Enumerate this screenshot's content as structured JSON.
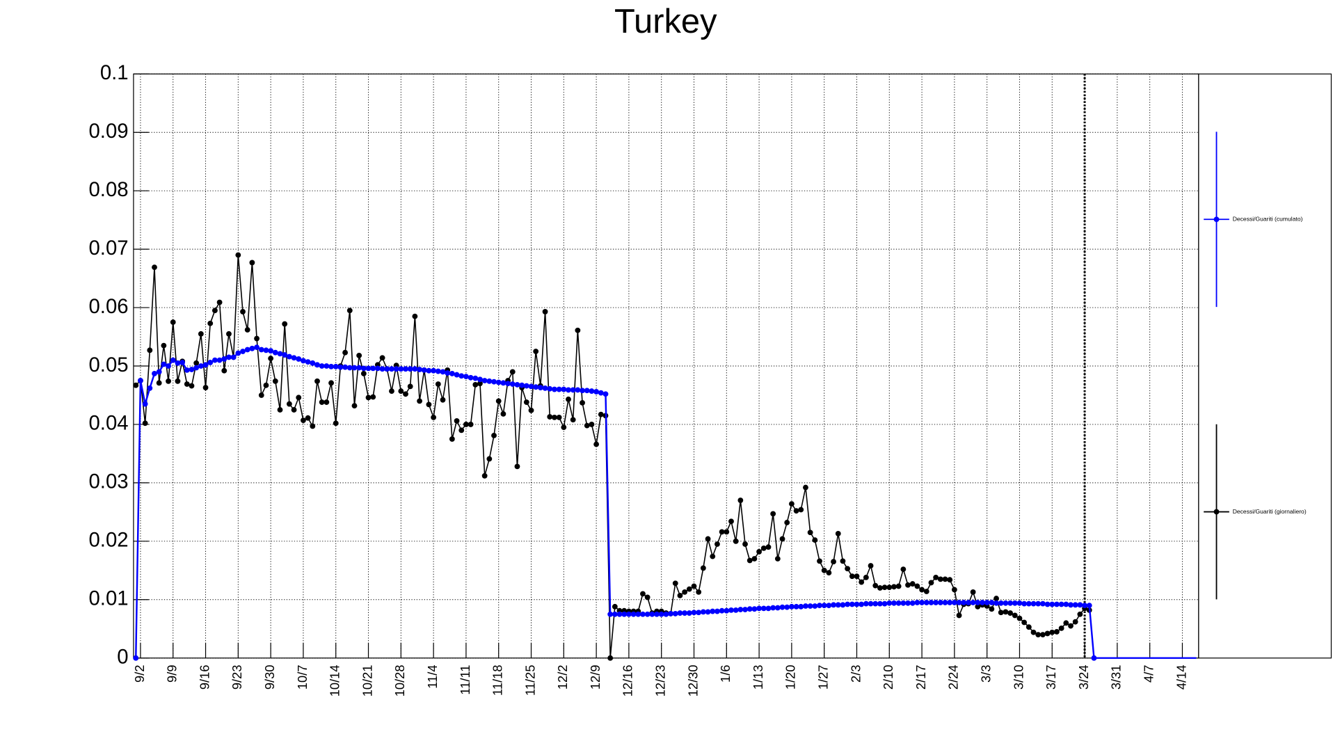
{
  "chart_data": {
    "type": "line",
    "title": "Turkey",
    "categories": [
      null,
      "9/2",
      null,
      null,
      null,
      null,
      null,
      null,
      "9/9",
      null,
      null,
      null,
      null,
      null,
      null,
      "9/16",
      null,
      null,
      null,
      null,
      null,
      null,
      "9/23",
      null,
      null,
      null,
      null,
      null,
      null,
      "9/30",
      null,
      null,
      null,
      null,
      null,
      null,
      "10/7",
      null,
      null,
      null,
      null,
      null,
      null,
      "10/14",
      null,
      null,
      null,
      null,
      null,
      null,
      "10/21",
      null,
      null,
      null,
      null,
      null,
      null,
      "10/28",
      null,
      null,
      null,
      null,
      null,
      null,
      "11/4",
      null,
      null,
      null,
      null,
      null,
      null,
      "11/11",
      null,
      null,
      null,
      null,
      null,
      null,
      "11/18",
      null,
      null,
      null,
      null,
      null,
      null,
      "11/25",
      null,
      null,
      null,
      null,
      null,
      null,
      "12/2",
      null,
      null,
      null,
      null,
      null,
      null,
      "12/9",
      null,
      null,
      null,
      null,
      null,
      null,
      "12/16",
      null,
      null,
      null,
      null,
      null,
      null,
      "12/23",
      null,
      null,
      null,
      null,
      null,
      null,
      "12/30",
      null,
      null,
      null,
      null,
      null,
      null,
      "1/6",
      null,
      null,
      null,
      null,
      null,
      null,
      "1/13",
      null,
      null,
      null,
      null,
      null,
      null,
      "1/20",
      null,
      null,
      null,
      null,
      null,
      null,
      "1/27",
      null,
      null,
      null,
      null,
      null,
      null,
      "2/3",
      null,
      null,
      null,
      null,
      null,
      null,
      "2/10",
      null,
      null,
      null,
      null,
      null,
      null,
      "2/17",
      null,
      null,
      null,
      null,
      null,
      null,
      "2/24",
      null,
      null,
      null,
      null,
      null,
      null,
      "3/3",
      null,
      null,
      null,
      null,
      null,
      null,
      "3/10",
      null,
      null,
      null,
      null,
      null,
      null,
      "3/17",
      null,
      null,
      null,
      null,
      null,
      null,
      "3/24",
      null,
      null,
      null,
      null,
      null,
      null,
      "3/31",
      null,
      null,
      null,
      null,
      null,
      null,
      "4/7",
      null,
      null,
      null,
      null,
      null,
      null,
      "4/14",
      null,
      null,
      null
    ],
    "series": [
      {
        "name": "Decessi/Guariti (cumulato)",
        "color": "#0000ff",
        "values": [
          0,
          0.0475,
          0.0435,
          0.0462,
          0.0487,
          0.049,
          0.0503,
          0.05,
          0.051,
          0.0505,
          0.0506,
          0.0493,
          0.0494,
          0.0497,
          0.05,
          0.0502,
          0.0506,
          0.051,
          0.051,
          0.0512,
          0.0515,
          0.0515,
          0.0522,
          0.0525,
          0.0528,
          0.053,
          0.0532,
          0.0528,
          0.0527,
          0.0526,
          0.0523,
          0.0521,
          0.0519,
          0.0516,
          0.0514,
          0.0512,
          0.0509,
          0.0507,
          0.0505,
          0.0502,
          0.05,
          0.05,
          0.0499,
          0.0499,
          0.0498,
          0.0498,
          0.0497,
          0.0497,
          0.0497,
          0.0496,
          0.0496,
          0.0496,
          0.0496,
          0.0495,
          0.0495,
          0.0495,
          0.0495,
          0.0495,
          0.0495,
          0.0495,
          0.0495,
          0.0494,
          0.0493,
          0.0492,
          0.0492,
          0.0491,
          0.049,
          0.0488,
          0.0487,
          0.0485,
          0.0483,
          0.0482,
          0.048,
          0.0479,
          0.0477,
          0.0475,
          0.0474,
          0.0473,
          0.0472,
          0.0471,
          0.047,
          0.0469,
          0.0468,
          0.0467,
          0.0466,
          0.0465,
          0.0464,
          0.0463,
          0.0462,
          0.0461,
          0.046,
          0.046,
          0.046,
          0.0459,
          0.0459,
          0.0459,
          0.0458,
          0.0458,
          0.0457,
          0.0456,
          0.0454,
          0.0452,
          0.0075,
          0.0075,
          0.0075,
          0.0075,
          0.0075,
          0.0075,
          0.0075,
          0.0075,
          0.0075,
          0.0075,
          0.0075,
          0.0075,
          0.0075,
          0.0076,
          0.0076,
          0.0077,
          0.0077,
          0.0077,
          0.0078,
          0.0078,
          0.0079,
          0.0079,
          0.008,
          0.008,
          0.0081,
          0.0081,
          0.0082,
          0.0082,
          0.0083,
          0.0083,
          0.0084,
          0.0084,
          0.0085,
          0.0085,
          0.0085,
          0.0086,
          0.0086,
          0.0087,
          0.0087,
          0.0088,
          0.0088,
          0.0088,
          0.0089,
          0.0089,
          0.0089,
          0.009,
          0.009,
          0.009,
          0.0091,
          0.0091,
          0.0091,
          0.0092,
          0.0092,
          0.0092,
          0.0092,
          0.0093,
          0.0093,
          0.0093,
          0.0093,
          0.0093,
          0.0094,
          0.0094,
          0.0094,
          0.0094,
          0.0094,
          0.0094,
          0.0095,
          0.0095,
          0.0095,
          0.0095,
          0.0095,
          0.0095,
          0.0095,
          0.0095,
          0.0095,
          0.0095,
          0.0095,
          0.0095,
          0.0095,
          0.0095,
          0.0095,
          0.0095,
          0.0095,
          0.0094,
          0.0094,
          0.0094,
          0.0094,
          0.0094,
          0.0094,
          0.0093,
          0.0093,
          0.0093,
          0.0093,
          0.0093,
          0.0092,
          0.0092,
          0.0092,
          0.0092,
          0.0092,
          0.0091,
          0.0091,
          0.0091,
          0.009,
          0.009,
          0,
          0,
          0,
          0,
          0,
          0,
          0,
          0,
          0,
          0,
          0,
          0,
          0,
          0,
          0,
          0,
          0,
          0,
          0,
          0,
          0,
          0,
          0
        ]
      },
      {
        "name": "Decessi/Guariti (giornaliero)",
        "color": "#000000",
        "values": [
          0.0467,
          0.0475,
          0.0402,
          0.0527,
          0.0669,
          0.0471,
          0.0535,
          0.0474,
          0.0575,
          0.0474,
          0.0508,
          0.0469,
          0.0466,
          0.0505,
          0.0555,
          0.0463,
          0.0573,
          0.0595,
          0.0609,
          0.0492,
          0.0555,
          0.0515,
          0.069,
          0.0593,
          0.0562,
          0.0677,
          0.0547,
          0.045,
          0.0467,
          0.0513,
          0.0474,
          0.0425,
          0.0572,
          0.0435,
          0.0425,
          0.0446,
          0.0407,
          0.0411,
          0.0397,
          0.0474,
          0.0438,
          0.0438,
          0.0471,
          0.0402,
          0.05,
          0.0523,
          0.0595,
          0.0432,
          0.0518,
          0.0487,
          0.0446,
          0.0447,
          0.0502,
          0.0514,
          0.0495,
          0.0457,
          0.0501,
          0.0457,
          0.0452,
          0.0465,
          0.0585,
          0.044,
          0.0493,
          0.0434,
          0.0412,
          0.0469,
          0.0442,
          0.0493,
          0.0375,
          0.0406,
          0.039,
          0.04,
          0.04,
          0.0468,
          0.047,
          0.0312,
          0.0341,
          0.0381,
          0.044,
          0.0418,
          0.0475,
          0.049,
          0.0328,
          0.0463,
          0.0438,
          0.0424,
          0.0525,
          0.0466,
          0.0593,
          0.0413,
          0.0412,
          0.0412,
          0.0395,
          0.0443,
          0.0408,
          0.0561,
          0.0437,
          0.0398,
          0.04,
          0.0366,
          0.0417,
          0.0415,
          0,
          0.0088,
          0.0081,
          0.0081,
          0.008,
          0.008,
          0.008,
          0.011,
          0.0104,
          0.0077,
          0.008,
          0.008,
          0.0077,
          0.0076,
          0.0128,
          0.0107,
          0.0113,
          0.0118,
          0.0123,
          0.0113,
          0.0154,
          0.0204,
          0.0174,
          0.0195,
          0.0216,
          0.0216,
          0.0234,
          0.02,
          0.027,
          0.0195,
          0.0167,
          0.017,
          0.0182,
          0.0188,
          0.019,
          0.0247,
          0.017,
          0.0204,
          0.0232,
          0.0264,
          0.0252,
          0.0254,
          0.0292,
          0.0215,
          0.0202,
          0.0166,
          0.015,
          0.0146,
          0.0165,
          0.0213,
          0.0166,
          0.0153,
          0.014,
          0.014,
          0.013,
          0.0138,
          0.0158,
          0.0124,
          0.012,
          0.0121,
          0.0121,
          0.0122,
          0.0123,
          0.0152,
          0.0125,
          0.0127,
          0.0123,
          0.0117,
          0.0114,
          0.0129,
          0.0138,
          0.0135,
          0.0135,
          0.0134,
          0.0117,
          0.0073,
          0.0092,
          0.0093,
          0.0113,
          0.0088,
          0.0091,
          0.0089,
          0.0084,
          0.0102,
          0.0078,
          0.0079,
          0.0077,
          0.0073,
          0.0068,
          0.0061,
          0.0053,
          0.0044,
          0.004,
          0.004,
          0.0042,
          0.0044,
          0.0045,
          0.0051,
          0.006,
          0.0055,
          0.0062,
          0.0075,
          0.0085,
          0.0082,
          null,
          null,
          null,
          null,
          null,
          null,
          null,
          null,
          null,
          null,
          null,
          null,
          null,
          null,
          null,
          null,
          null,
          null,
          null,
          null,
          null,
          null,
          null
        ]
      }
    ],
    "ylim": [
      0,
      0.1
    ],
    "yticks": [
      0,
      0.01,
      0.02,
      0.03,
      0.04,
      0.05,
      0.06,
      0.07,
      0.08,
      0.09,
      0.1
    ],
    "grid": true,
    "reference_line": "3/24",
    "legend": "right"
  }
}
